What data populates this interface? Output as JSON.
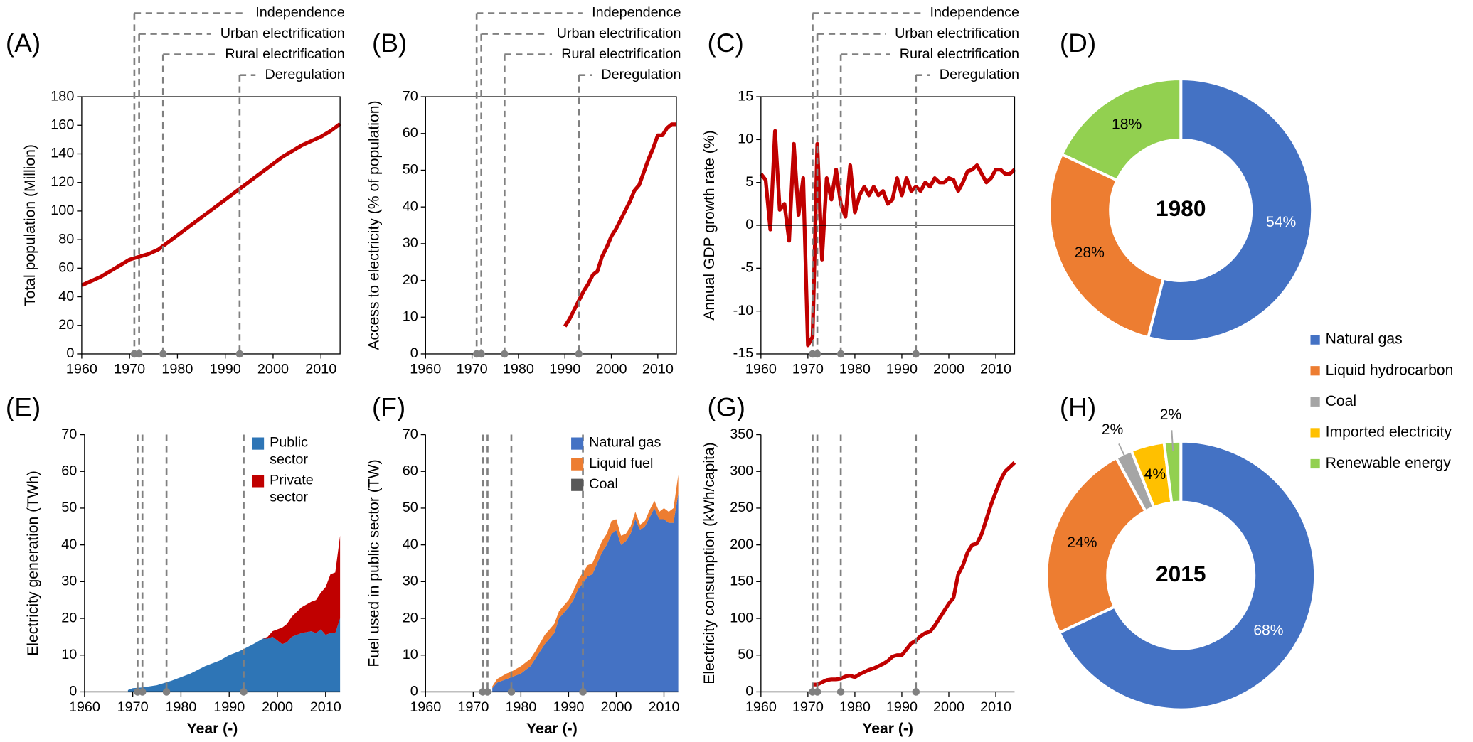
{
  "chart_data": [
    {
      "type": "line",
      "panel_label": "(A)",
      "y_label": "Total population (Million)",
      "color": "#c00000",
      "frame": true,
      "xlim": [
        1960,
        2014
      ],
      "xticks": [
        1960,
        1970,
        1980,
        1990,
        2000,
        2010
      ],
      "ylim": [
        0,
        180
      ],
      "yticks": [
        0,
        20,
        40,
        60,
        80,
        100,
        120,
        140,
        160,
        180
      ],
      "x": [
        1960,
        1962,
        1964,
        1966,
        1968,
        1970,
        1972,
        1974,
        1976,
        1978,
        1980,
        1982,
        1984,
        1986,
        1988,
        1990,
        1992,
        1994,
        1996,
        1998,
        2000,
        2002,
        2004,
        2006,
        2008,
        2010,
        2012,
        2014
      ],
      "values": [
        48,
        51,
        54,
        58,
        62,
        66,
        68,
        70,
        73,
        78,
        83,
        88,
        93,
        98,
        103,
        108,
        113,
        118,
        123,
        128,
        133,
        138,
        142,
        146,
        149,
        152,
        156,
        161
      ],
      "events": [
        {
          "label": "Independence",
          "x": 1971
        },
        {
          "label": "Urban electrification",
          "x": 1972
        },
        {
          "label": "Rural electrification",
          "x": 1977
        },
        {
          "label": "Deregulation",
          "x": 1993
        }
      ]
    },
    {
      "type": "line",
      "panel_label": "(B)",
      "y_label": "Access to electricity (% of population)",
      "color": "#c00000",
      "frame": true,
      "xlim": [
        1960,
        2014
      ],
      "xticks": [
        1960,
        1970,
        1980,
        1990,
        2000,
        2010
      ],
      "ylim": [
        0,
        70
      ],
      "yticks": [
        0,
        10,
        20,
        30,
        40,
        50,
        60,
        70
      ],
      "x": [
        1990,
        1991,
        1992,
        1993,
        1994,
        1995,
        1996,
        1997,
        1998,
        1999,
        2000,
        2001,
        2002,
        2003,
        2004,
        2005,
        2006,
        2007,
        2008,
        2009,
        2010,
        2011,
        2012,
        2013,
        2014
      ],
      "values": [
        7.5,
        9.5,
        12,
        14.5,
        17,
        19,
        21.5,
        22.5,
        26.5,
        29,
        32,
        34,
        36.5,
        39,
        41.5,
        44.5,
        46,
        49.5,
        53,
        56,
        59.5,
        59.5,
        61.5,
        62.5,
        62.5
      ],
      "events": [
        {
          "label": "Independence",
          "x": 1971
        },
        {
          "label": "Urban electrification",
          "x": 1972
        },
        {
          "label": "Rural electrification",
          "x": 1977
        },
        {
          "label": "Deregulation",
          "x": 1993
        }
      ]
    },
    {
      "type": "line",
      "panel_label": "(C)",
      "y_label": "Annual GDP growth rate (%)",
      "color": "#c00000",
      "frame": true,
      "xlim": [
        1960,
        2014
      ],
      "xticks": [
        1960,
        1970,
        1980,
        1990,
        2000,
        2010
      ],
      "ylim": [
        -15,
        15
      ],
      "yticks": [
        -15,
        -10,
        -5,
        0,
        5,
        10,
        15
      ],
      "x": [
        1960,
        1961,
        1962,
        1963,
        1964,
        1965,
        1966,
        1967,
        1968,
        1969,
        1970,
        1971,
        1972,
        1973,
        1974,
        1975,
        1976,
        1977,
        1978,
        1979,
        1980,
        1981,
        1982,
        1983,
        1984,
        1985,
        1986,
        1987,
        1988,
        1989,
        1990,
        1991,
        1992,
        1993,
        1994,
        1995,
        1996,
        1997,
        1998,
        1999,
        2000,
        2001,
        2002,
        2003,
        2004,
        2005,
        2006,
        2007,
        2008,
        2009,
        2010,
        2011,
        2012,
        2013,
        2014
      ],
      "values": [
        6,
        5.3,
        -0.5,
        11,
        1.8,
        2.5,
        -1.8,
        9.5,
        1.2,
        5.5,
        -14,
        -13,
        9.5,
        -4,
        5.5,
        3,
        6.5,
        2.5,
        1,
        7,
        1.5,
        3.5,
        4.5,
        3.5,
        4.5,
        3.5,
        4,
        2.5,
        3,
        5.5,
        3.5,
        5.5,
        4,
        4.5,
        4,
        5,
        4.5,
        5.5,
        5,
        5,
        5.5,
        5.3,
        4,
        5,
        6.3,
        6.5,
        7,
        6,
        5,
        5.5,
        6.5,
        6.5,
        6,
        6,
        6.5
      ],
      "events": [
        {
          "label": "Independence",
          "x": 1971
        },
        {
          "label": "Urban electrification",
          "x": 1972
        },
        {
          "label": "Rural electrification",
          "x": 1977
        },
        {
          "label": "Deregulation",
          "x": 1993
        }
      ]
    },
    {
      "type": "pie",
      "panel_label": "(D)",
      "center_label": "1980",
      "categories": [
        "Natural gas",
        "Liquid hydrocarbon",
        "Renewable energy"
      ],
      "values": [
        54,
        28,
        18
      ],
      "value_labels": [
        "54%",
        "28%",
        "18%"
      ],
      "colors": [
        "#4472c4",
        "#ed7d31",
        "#92d050"
      ]
    },
    {
      "type": "area",
      "panel_label": "(E)",
      "y_label": "Electricity generation (TWh)",
      "x_label": "Year (-)",
      "stacked": true,
      "legend": "upper right",
      "xlim": [
        1960,
        2013
      ],
      "xticks": [
        1960,
        1970,
        1980,
        1990,
        2000,
        2010
      ],
      "ylim": [
        0,
        70
      ],
      "yticks": [
        0,
        10,
        20,
        30,
        40,
        50,
        60,
        70
      ],
      "x": [
        1969,
        1970,
        1972,
        1975,
        1978,
        1980,
        1982,
        1985,
        1988,
        1990,
        1992,
        1995,
        1997,
        1998,
        1999,
        2000,
        2001,
        2002,
        2003,
        2005,
        2007,
        2008,
        2009,
        2010,
        2011,
        2012,
        2013
      ],
      "series": [
        {
          "name": "Public sector",
          "color": "#2e75b6",
          "values": [
            0.5,
            1,
            1.2,
            1.8,
            3,
            4,
            5,
            7,
            8.5,
            10,
            11,
            13,
            14.5,
            14.5,
            15,
            14,
            13,
            13.5,
            15,
            16,
            16.5,
            16,
            17,
            15.5,
            16,
            16,
            20
          ]
        },
        {
          "name": "Private sector",
          "color": "#c00000",
          "values": [
            0,
            0,
            0,
            0,
            0,
            0,
            0,
            0,
            0,
            0,
            0,
            0,
            0,
            0.5,
            1.5,
            3,
            4.5,
            5,
            5.5,
            7,
            8,
            9,
            10,
            13,
            16,
            16.5,
            22.5
          ]
        }
      ],
      "events": [
        {
          "x": 1971
        },
        {
          "x": 1972
        },
        {
          "x": 1977
        },
        {
          "x": 1993
        }
      ]
    },
    {
      "type": "area",
      "panel_label": "(F)",
      "y_label": "Fuel used in public sector (TW)",
      "x_label": "Year (-)",
      "stacked": true,
      "legend": "upper right",
      "xlim": [
        1960,
        2013
      ],
      "xticks": [
        1960,
        1970,
        1980,
        1990,
        2000,
        2010
      ],
      "ylim": [
        0,
        70
      ],
      "yticks": [
        0,
        10,
        20,
        30,
        40,
        50,
        60,
        70
      ],
      "x": [
        1974,
        1975,
        1977,
        1978,
        1980,
        1982,
        1983,
        1985,
        1987,
        1988,
        1990,
        1991,
        1992,
        1993,
        1994,
        1995,
        1996,
        1997,
        1998,
        1999,
        2000,
        2001,
        2002,
        2003,
        2004,
        2005,
        2006,
        2007,
        2008,
        2009,
        2010,
        2011,
        2012,
        2013
      ],
      "series": [
        {
          "name": "Natural gas",
          "color": "#4472c4",
          "values": [
            1,
            2.5,
            3.5,
            4,
            5,
            7,
            9,
            13,
            16,
            20,
            23,
            25,
            28,
            29.5,
            31.5,
            32,
            35,
            38,
            40,
            43,
            44,
            40,
            41,
            43,
            47,
            44,
            45,
            47.5,
            50,
            47,
            47,
            46,
            46,
            54
          ]
        },
        {
          "name": "Liquid fuel",
          "color": "#ed7d31",
          "values": [
            0.5,
            1,
            1.5,
            1.5,
            2,
            2,
            2,
            2.5,
            2.5,
            2,
            2,
            2.5,
            2.5,
            3,
            3,
            3,
            3,
            3,
            3,
            3.5,
            3,
            2.5,
            2,
            2,
            2,
            1.5,
            1.5,
            2,
            2,
            2,
            3,
            3,
            4,
            5
          ]
        },
        {
          "name": "Coal",
          "color": "#595959",
          "values": [
            0,
            0,
            0,
            0,
            0,
            0,
            0,
            0,
            0,
            0,
            0,
            0,
            0,
            0,
            0,
            0,
            0,
            0,
            0,
            0,
            0,
            0,
            0,
            0,
            0,
            0,
            0,
            0,
            0,
            0,
            0,
            0,
            0,
            0
          ]
        }
      ],
      "events": [
        {
          "x": 1972
        },
        {
          "x": 1973
        },
        {
          "x": 1978
        },
        {
          "x": 1993
        }
      ]
    },
    {
      "type": "line",
      "panel_label": "(G)",
      "y_label": "Electricity consumption (kWh/capita)",
      "x_label": "Year (-)",
      "color": "#c00000",
      "xlim": [
        1960,
        2014
      ],
      "xticks": [
        1960,
        1970,
        1980,
        1990,
        2000,
        2010
      ],
      "ylim": [
        0,
        350
      ],
      "yticks": [
        0,
        50,
        100,
        150,
        200,
        250,
        300,
        350
      ],
      "x": [
        1971,
        1972,
        1973,
        1974,
        1975,
        1976,
        1977,
        1978,
        1979,
        1980,
        1981,
        1982,
        1983,
        1984,
        1985,
        1986,
        1987,
        1988,
        1989,
        1990,
        1991,
        1992,
        1993,
        1994,
        1995,
        1996,
        1997,
        1998,
        1999,
        2000,
        2001,
        2002,
        2003,
        2004,
        2005,
        2006,
        2007,
        2008,
        2009,
        2010,
        2011,
        2012,
        2013,
        2014
      ],
      "values": [
        10,
        10,
        13,
        16,
        17,
        17,
        18,
        21,
        22,
        20,
        24,
        27,
        30,
        32,
        35,
        38,
        42,
        48,
        50,
        50,
        58,
        66,
        70,
        76,
        80,
        82,
        90,
        100,
        110,
        120,
        128,
        160,
        172,
        190,
        200,
        202,
        215,
        235,
        255,
        272,
        288,
        300,
        306,
        312
      ],
      "events": [
        {
          "x": 1971
        },
        {
          "x": 1972
        },
        {
          "x": 1977
        },
        {
          "x": 1993
        }
      ]
    },
    {
      "type": "pie",
      "panel_label": "(H)",
      "center_label": "2015",
      "legend": true,
      "categories": [
        "Natural gas",
        "Liquid hydrocarbon",
        "Coal",
        "Imported electricity",
        "Renewable energy"
      ],
      "values": [
        68,
        24,
        2,
        4,
        2
      ],
      "value_labels": [
        "68%",
        "24%",
        "2%",
        "4%",
        "2%"
      ],
      "colors": [
        "#4472c4",
        "#ed7d31",
        "#a5a5a5",
        "#ffc000",
        "#92d050"
      ]
    }
  ]
}
